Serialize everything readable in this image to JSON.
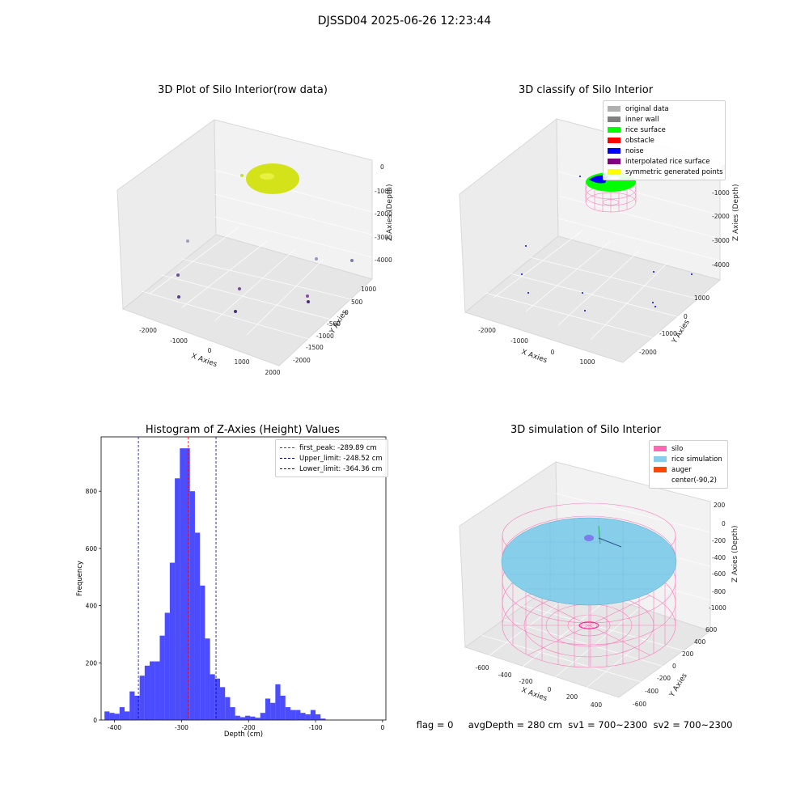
{
  "figure": {
    "suptitle": "DJSSD04 2025-06-26 12:23:44"
  },
  "footer": {
    "text": "flag = 0     avgDepth = 280 cm  sv1 = 700~2300  sv2 = 700~2300"
  },
  "colors": {
    "raw_surface": "#d4e21a",
    "rice_surface": "#00ff00",
    "noise": "#0000ff",
    "silo": "#ff69b4",
    "rice_sim": "#87ceeb",
    "auger": "#ff4500",
    "hist": "#0000ff"
  },
  "chart_data": [
    {
      "type": "scatter3d",
      "title": "3D Plot of Silo Interior(row data)",
      "xlabel": "X Axies",
      "ylabel": "Y Axies",
      "zlabel": "Z Axies (Depth)",
      "xticks": [
        "-2000",
        "-1000",
        "0",
        "1000",
        "2000"
      ],
      "yticks": [
        "1000",
        "500",
        "0",
        "-500",
        "-1000",
        "-1500",
        "-2000"
      ],
      "zticks": [
        "0",
        "-1000",
        "-2000",
        "-3000",
        "-4000"
      ]
    },
    {
      "type": "scatter3d",
      "title": "3D classify of Silo Interior",
      "xlabel": "X Axies",
      "ylabel": "Y Axies",
      "zlabel": "Z Axies (Depth)",
      "xticks": [
        "-2000",
        "-1000",
        "0",
        "1000"
      ],
      "yticks": [
        "1000",
        "0",
        "-1000",
        "-2000"
      ],
      "zticks": [
        "0",
        "-1000",
        "-2000",
        "-3000",
        "-4000"
      ],
      "legend": [
        {
          "label": "original data",
          "color": "#b0b0b0"
        },
        {
          "label": "inner wall",
          "color": "#808080"
        },
        {
          "label": "rice surface",
          "color": "#00ff00"
        },
        {
          "label": "obstacle",
          "color": "#ff0000"
        },
        {
          "label": "noise",
          "color": "#0000ff"
        },
        {
          "label": "interpolated rice surface",
          "color": "#800080"
        },
        {
          "label": "symmetric generated points",
          "color": "#ffff00"
        }
      ]
    },
    {
      "type": "bar",
      "title": "Histogram of Z-Axies (Height) Values",
      "xlabel": "Depth (cm)",
      "ylabel": "Frequency",
      "xlim": [
        -420,
        5
      ],
      "ylim": [
        0,
        990
      ],
      "xticks": [
        -400,
        -300,
        -200,
        -100,
        0
      ],
      "yticks": [
        0,
        200,
        400,
        600,
        800
      ],
      "bin_width": 7.5,
      "bin_starts": [
        -415,
        -407.5,
        -400,
        -392.5,
        -385,
        -377.5,
        -370,
        -362.5,
        -355,
        -347.5,
        -340,
        -332.5,
        -325,
        -317.5,
        -310,
        -302.5,
        -295,
        -287.5,
        -280,
        -272.5,
        -265,
        -257.5,
        -250,
        -242.5,
        -235,
        -227.5,
        -220,
        -212.5,
        -205,
        -197.5,
        -190,
        -182.5,
        -175,
        -167.5,
        -160,
        -152.5,
        -145,
        -137.5,
        -130,
        -122.5,
        -115,
        -107.5,
        -100,
        -92.5,
        -85,
        -77.5,
        -70,
        -62.5,
        -55,
        -47.5
      ],
      "values": [
        30,
        25,
        22,
        45,
        30,
        100,
        85,
        155,
        190,
        205,
        205,
        295,
        375,
        550,
        845,
        950,
        950,
        800,
        655,
        470,
        285,
        160,
        145,
        115,
        80,
        45,
        15,
        10,
        15,
        12,
        8,
        25,
        75,
        60,
        125,
        85,
        45,
        35,
        35,
        25,
        20,
        35,
        20,
        5,
        0,
        0,
        0,
        0,
        0,
        0
      ],
      "vlines": [
        {
          "label": "first_peak: -289.89 cm",
          "x": -289.89,
          "color": "#ff0000"
        },
        {
          "label": "Upper_limit: -248.52 cm",
          "x": -248.52,
          "color": "#00008b"
        },
        {
          "label": "Lower_limit: -364.36 cm",
          "x": -364.36,
          "color": "#0000cd"
        }
      ]
    },
    {
      "type": "surface3d",
      "title": "3D simulation of Silo Interior",
      "xlabel": "X Axies",
      "ylabel": "Y Axies",
      "zlabel": "Z Axies (Depth)",
      "xticks": [
        "-600",
        "-400",
        "-200",
        "0",
        "200",
        "400"
      ],
      "yticks": [
        "600",
        "400",
        "200",
        "0",
        "-200",
        "-400",
        "-600"
      ],
      "zticks": [
        "200",
        "0",
        "-200",
        "-400",
        "-600",
        "-800",
        "-1000"
      ],
      "legend": [
        {
          "label": "silo",
          "color": "#ff69b4"
        },
        {
          "label": "rice simulation",
          "color": "#87ceeb"
        },
        {
          "label": "auger",
          "color": "#ff4500"
        },
        {
          "label": "center(-90,2)",
          "color": ""
        }
      ]
    }
  ]
}
